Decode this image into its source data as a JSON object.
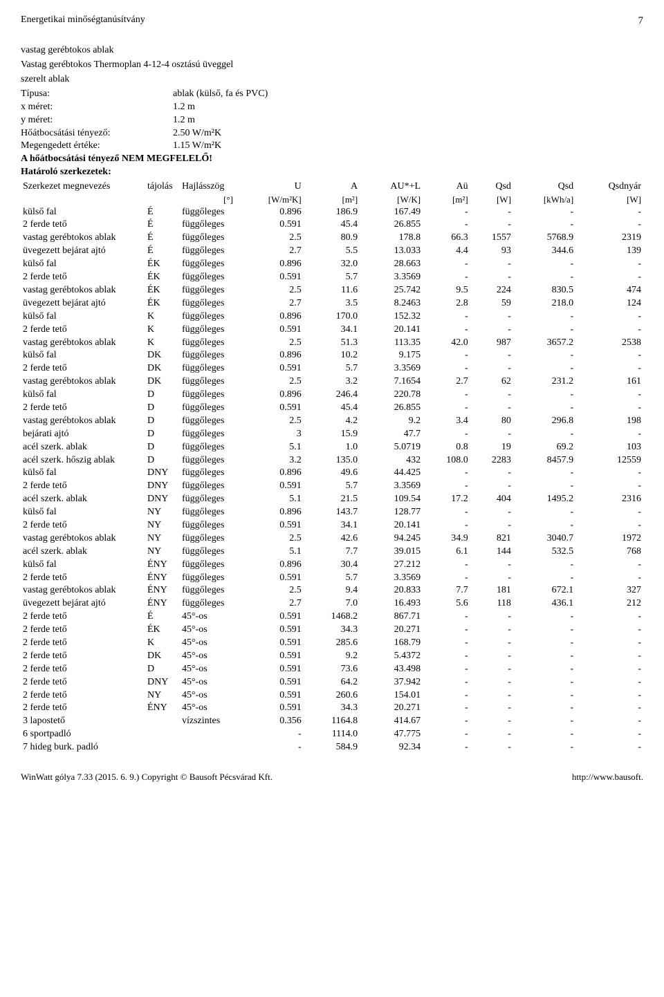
{
  "header": {
    "title": "Energetikai minőségtanúsítvány",
    "page_number": "7"
  },
  "intro": {
    "line1": "vastag gerébtokos ablak",
    "line2": "Vastag gerébtokos Thermoplan 4-12-4 osztású üveggel",
    "line3": "szerelt ablak",
    "type_label": "Típusa:",
    "type_value": "ablak (külső, fa és PVC)",
    "xmeret_label": "x méret:",
    "xmeret_value": "1.2 m",
    "ymeret_label": "y méret:",
    "ymeret_value": "1.2 m",
    "hoat_label": "Hőátbocsátási tényező:",
    "hoat_value": "2.50 W/m²K",
    "meg_label": "Megengedett értéke:",
    "meg_value": "1.15 W/m²K",
    "warning": "A hőátbocsátási tényező NEM MEGFELELŐ!",
    "hatarolo": "Határoló szerkezetek:"
  },
  "table": {
    "headers": {
      "szerkezet": "Szerkezet megnevezés",
      "tajolas": "tájolás",
      "hajlasszog": "Hajlásszög",
      "u": "U",
      "a": "A",
      "aul": "AU*+L",
      "au": "Aü",
      "qsd1": "Qsd",
      "qsd2": "Qsd",
      "qsdnyar": "Qsdnyár"
    },
    "units": {
      "hajlasszog": "[°]",
      "u": "[W/m²K]",
      "a": "[m²]",
      "aul": "[W/K]",
      "au": "[m²]",
      "qsd1": "[W]",
      "qsd2": "[kWh/a]",
      "qsdnyar": "[W]"
    },
    "rows": [
      [
        "külső fal",
        "É",
        "függőleges",
        "0.896",
        "186.9",
        "167.49",
        "-",
        "-",
        "-",
        "-"
      ],
      [
        "2 ferde tető",
        "É",
        "függőleges",
        "0.591",
        "45.4",
        "26.855",
        "-",
        "-",
        "-",
        "-"
      ],
      [
        "vastag gerébtokos ablak",
        "É",
        "függőleges",
        "2.5",
        "80.9",
        "178.8",
        "66.3",
        "1557",
        "5768.9",
        "2319"
      ],
      [
        "üvegezett bejárat ajtó",
        "É",
        "függőleges",
        "2.7",
        "5.5",
        "13.033",
        "4.4",
        "93",
        "344.6",
        "139"
      ],
      [
        "külső fal",
        "ÉK",
        "függőleges",
        "0.896",
        "32.0",
        "28.663",
        "-",
        "-",
        "-",
        "-"
      ],
      [
        "2 ferde tető",
        "ÉK",
        "függőleges",
        "0.591",
        "5.7",
        "3.3569",
        "-",
        "-",
        "-",
        "-"
      ],
      [
        "vastag gerébtokos ablak",
        "ÉK",
        "függőleges",
        "2.5",
        "11.6",
        "25.742",
        "9.5",
        "224",
        "830.5",
        "474"
      ],
      [
        "üvegezett bejárat ajtó",
        "ÉK",
        "függőleges",
        "2.7",
        "3.5",
        "8.2463",
        "2.8",
        "59",
        "218.0",
        "124"
      ],
      [
        "külső fal",
        "K",
        "függőleges",
        "0.896",
        "170.0",
        "152.32",
        "-",
        "-",
        "-",
        "-"
      ],
      [
        "2 ferde tető",
        "K",
        "függőleges",
        "0.591",
        "34.1",
        "20.141",
        "-",
        "-",
        "-",
        "-"
      ],
      [
        "vastag gerébtokos ablak",
        "K",
        "függőleges",
        "2.5",
        "51.3",
        "113.35",
        "42.0",
        "987",
        "3657.2",
        "2538"
      ],
      [
        "külső fal",
        "DK",
        "függőleges",
        "0.896",
        "10.2",
        "9.175",
        "-",
        "-",
        "-",
        "-"
      ],
      [
        "2 ferde tető",
        "DK",
        "függőleges",
        "0.591",
        "5.7",
        "3.3569",
        "-",
        "-",
        "-",
        "-"
      ],
      [
        "vastag gerébtokos ablak",
        "DK",
        "függőleges",
        "2.5",
        "3.2",
        "7.1654",
        "2.7",
        "62",
        "231.2",
        "161"
      ],
      [
        "külső fal",
        "D",
        "függőleges",
        "0.896",
        "246.4",
        "220.78",
        "-",
        "-",
        "-",
        "-"
      ],
      [
        "2 ferde tető",
        "D",
        "függőleges",
        "0.591",
        "45.4",
        "26.855",
        "-",
        "-",
        "-",
        "-"
      ],
      [
        "vastag gerébtokos ablak",
        "D",
        "függőleges",
        "2.5",
        "4.2",
        "9.2",
        "3.4",
        "80",
        "296.8",
        "198"
      ],
      [
        "bejárati ajtó",
        "D",
        "függőleges",
        "3",
        "15.9",
        "47.7",
        "-",
        "-",
        "-",
        "-"
      ],
      [
        "acél szerk. ablak",
        "D",
        "függőleges",
        "5.1",
        "1.0",
        "5.0719",
        "0.8",
        "19",
        "69.2",
        "103"
      ],
      [
        "acél szerk. hőszig ablak",
        "D",
        "függőleges",
        "3.2",
        "135.0",
        "432",
        "108.0",
        "2283",
        "8457.9",
        "12559"
      ],
      [
        "külső fal",
        "DNY",
        "függőleges",
        "0.896",
        "49.6",
        "44.425",
        "-",
        "-",
        "-",
        "-"
      ],
      [
        "2 ferde tető",
        "DNY",
        "függőleges",
        "0.591",
        "5.7",
        "3.3569",
        "-",
        "-",
        "-",
        "-"
      ],
      [
        "acél szerk. ablak",
        "DNY",
        "függőleges",
        "5.1",
        "21.5",
        "109.54",
        "17.2",
        "404",
        "1495.2",
        "2316"
      ],
      [
        "külső fal",
        "NY",
        "függőleges",
        "0.896",
        "143.7",
        "128.77",
        "-",
        "-",
        "-",
        "-"
      ],
      [
        "2 ferde tető",
        "NY",
        "függőleges",
        "0.591",
        "34.1",
        "20.141",
        "-",
        "-",
        "-",
        "-"
      ],
      [
        "vastag gerébtokos ablak",
        "NY",
        "függőleges",
        "2.5",
        "42.6",
        "94.245",
        "34.9",
        "821",
        "3040.7",
        "1972"
      ],
      [
        "acél szerk. ablak",
        "NY",
        "függőleges",
        "5.1",
        "7.7",
        "39.015",
        "6.1",
        "144",
        "532.5",
        "768"
      ],
      [
        "külső fal",
        "ÉNY",
        "függőleges",
        "0.896",
        "30.4",
        "27.212",
        "-",
        "-",
        "-",
        "-"
      ],
      [
        "2 ferde tető",
        "ÉNY",
        "függőleges",
        "0.591",
        "5.7",
        "3.3569",
        "-",
        "-",
        "-",
        "-"
      ],
      [
        "vastag gerébtokos ablak",
        "ÉNY",
        "függőleges",
        "2.5",
        "9.4",
        "20.833",
        "7.7",
        "181",
        "672.1",
        "327"
      ],
      [
        "üvegezett bejárat ajtó",
        "ÉNY",
        "függőleges",
        "2.7",
        "7.0",
        "16.493",
        "5.6",
        "118",
        "436.1",
        "212"
      ],
      [
        "2 ferde tető",
        "É",
        "45°-os",
        "0.591",
        "1468.2",
        "867.71",
        "-",
        "-",
        "-",
        "-"
      ],
      [
        "2 ferde tető",
        "ÉK",
        "45°-os",
        "0.591",
        "34.3",
        "20.271",
        "-",
        "-",
        "-",
        "-"
      ],
      [
        "2 ferde tető",
        "K",
        "45°-os",
        "0.591",
        "285.6",
        "168.79",
        "-",
        "-",
        "-",
        "-"
      ],
      [
        "2 ferde tető",
        "DK",
        "45°-os",
        "0.591",
        "9.2",
        "5.4372",
        "-",
        "-",
        "-",
        "-"
      ],
      [
        "2 ferde tető",
        "D",
        "45°-os",
        "0.591",
        "73.6",
        "43.498",
        "-",
        "-",
        "-",
        "-"
      ],
      [
        "2 ferde tető",
        "DNY",
        "45°-os",
        "0.591",
        "64.2",
        "37.942",
        "-",
        "-",
        "-",
        "-"
      ],
      [
        "2 ferde tető",
        "NY",
        "45°-os",
        "0.591",
        "260.6",
        "154.01",
        "-",
        "-",
        "-",
        "-"
      ],
      [
        "2 ferde tető",
        "ÉNY",
        "45°-os",
        "0.591",
        "34.3",
        "20.271",
        "-",
        "-",
        "-",
        "-"
      ],
      [
        "3 lapostető",
        "",
        "vízszintes",
        "0.356",
        "1164.8",
        "414.67",
        "-",
        "-",
        "-",
        "-"
      ],
      [
        "6 sportpadló",
        "",
        "",
        "-",
        "1114.0",
        "47.775",
        "-",
        "-",
        "-",
        "-"
      ],
      [
        "7 hideg burk. padló",
        "",
        "",
        "-",
        "584.9",
        "92.34",
        "-",
        "-",
        "-",
        "-"
      ]
    ]
  },
  "footer": {
    "left": "WinWatt gólya 7.33 (2015. 6. 9.) Copyright © Bausoft Pécsvárad Kft.",
    "right": "http://www.bausoft."
  }
}
